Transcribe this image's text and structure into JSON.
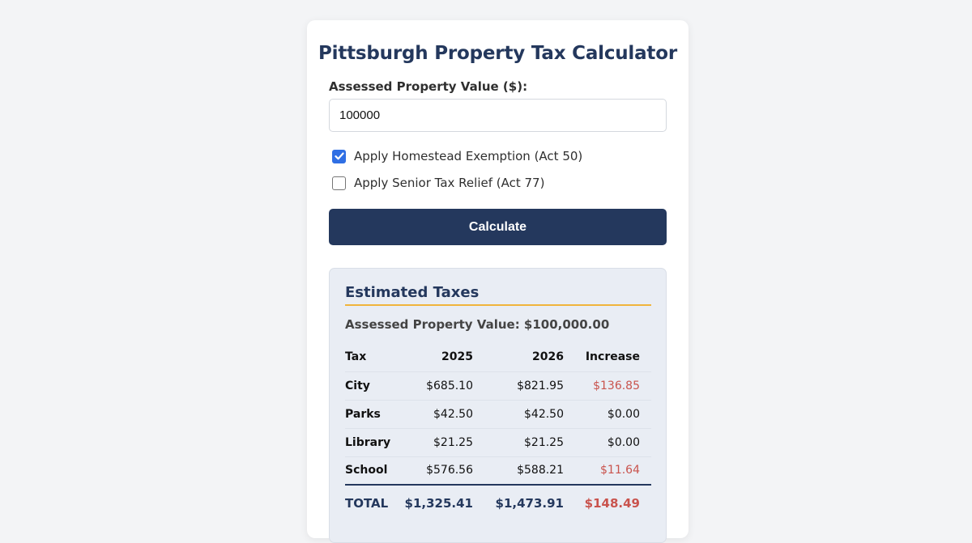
{
  "calculator": {
    "title": "Pittsburgh Property Tax Calculator",
    "value_label": "Assessed Property Value ($):",
    "value_input": "100000",
    "homestead": {
      "label": "Apply Homestead Exemption (Act 50)",
      "checked": true
    },
    "senior": {
      "label": "Apply Senior Tax Relief (Act 77)",
      "checked": false
    },
    "calculate_label": "Calculate"
  },
  "results": {
    "title": "Estimated Taxes",
    "assessed_line": "Assessed Property Value: $100,000.00",
    "headers": {
      "tax": "Tax",
      "y2025": "2025",
      "y2026": "2026",
      "increase": "Increase"
    },
    "rows": [
      {
        "tax": "City",
        "y2025": "$685.10",
        "y2026": "$821.95",
        "increase": "$136.85"
      },
      {
        "tax": "Parks",
        "y2025": "$42.50",
        "y2026": "$42.50",
        "increase": "$0.00"
      },
      {
        "tax": "Library",
        "y2025": "$21.25",
        "y2026": "$21.25",
        "increase": "$0.00"
      },
      {
        "tax": "School",
        "y2025": "$576.56",
        "y2026": "$588.21",
        "increase": "$11.64"
      }
    ],
    "total": {
      "tax": "TOTAL",
      "y2025": "$1,325.41",
      "y2026": "$1,473.91",
      "increase": "$148.49"
    },
    "colors": {
      "increase": "#c9534d",
      "accent": "#24385d",
      "rule": "#f0b43c"
    }
  }
}
